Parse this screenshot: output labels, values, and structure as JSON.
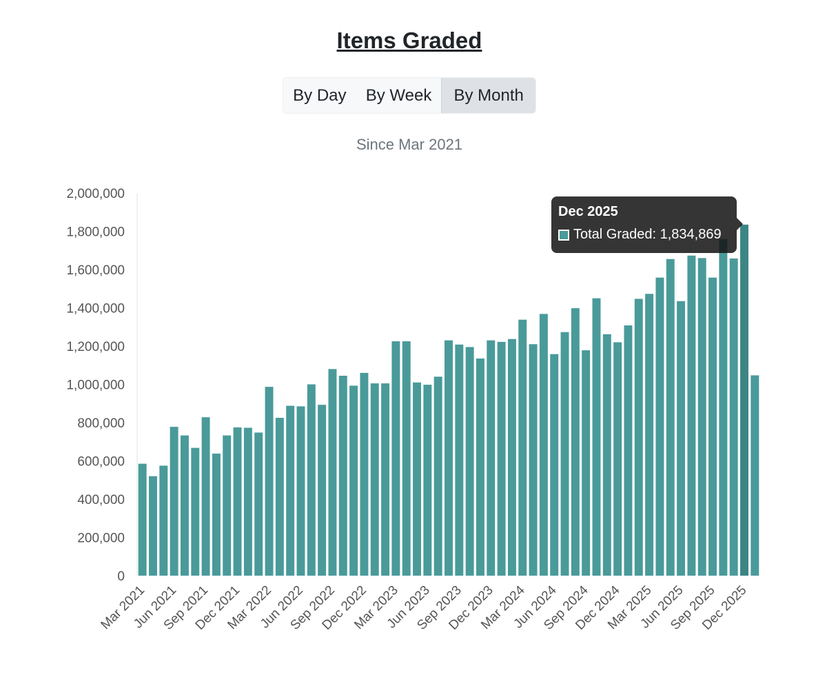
{
  "page": {
    "title": "Items Graded",
    "subtitle": "Since Mar 2021",
    "toggle": {
      "day": "By Day",
      "week": "By Week",
      "month": "By Month",
      "active": "month"
    }
  },
  "tooltip": {
    "title": "Dec 2025",
    "series": "Total Graded",
    "value": "1,834,869",
    "text": "Total Graded: 1,834,869"
  },
  "colors": {
    "bar": "#4a9a9a",
    "bar_highlight": "#3d8585",
    "axis_text": "#555555"
  },
  "chart_data": {
    "type": "bar",
    "title": "Items Graded",
    "subtitle": "Since Mar 2021",
    "xlabel": "",
    "ylabel": "",
    "ylim": [
      0,
      2000000
    ],
    "yticks": [
      0,
      200000,
      400000,
      600000,
      800000,
      1000000,
      1200000,
      1400000,
      1600000,
      1800000,
      2000000
    ],
    "ytick_labels": [
      "0",
      "200,000",
      "400,000",
      "600,000",
      "800,000",
      "1,000,000",
      "1,200,000",
      "1,400,000",
      "1,600,000",
      "1,800,000",
      "2,000,000"
    ],
    "grid": false,
    "categories": [
      "Mar 2021",
      "Apr 2021",
      "May 2021",
      "Jun 2021",
      "Jul 2021",
      "Aug 2021",
      "Sep 2021",
      "Oct 2021",
      "Nov 2021",
      "Dec 2021",
      "Jan 2022",
      "Feb 2022",
      "Mar 2022",
      "Apr 2022",
      "May 2022",
      "Jun 2022",
      "Jul 2022",
      "Aug 2022",
      "Sep 2022",
      "Oct 2022",
      "Nov 2022",
      "Dec 2022",
      "Jan 2023",
      "Feb 2023",
      "Mar 2023",
      "Apr 2023",
      "May 2023",
      "Jun 2023",
      "Jul 2023",
      "Aug 2023",
      "Sep 2023",
      "Oct 2023",
      "Nov 2023",
      "Dec 2023",
      "Jan 2024",
      "Feb 2024",
      "Mar 2024",
      "Apr 2024",
      "May 2024",
      "Jun 2024",
      "Jul 2024",
      "Aug 2024",
      "Sep 2024",
      "Oct 2024",
      "Nov 2024",
      "Dec 2024",
      "Jan 2025",
      "Feb 2025",
      "Mar 2025",
      "Apr 2025",
      "May 2025",
      "Jun 2025",
      "Jul 2025",
      "Aug 2025",
      "Sep 2025",
      "Oct 2025",
      "Nov 2025",
      "Dec 2025",
      "Jan 2026"
    ],
    "tick_labels": [
      "Mar 2021",
      "Jun 2021",
      "Sep 2021",
      "Dec 2021",
      "Mar 2022",
      "Jun 2022",
      "Sep 2022",
      "Dec 2022",
      "Mar 2023",
      "Jun 2023",
      "Sep 2023",
      "Dec 2023",
      "Mar 2024",
      "Jun 2024",
      "Sep 2024",
      "Dec 2024",
      "Mar 2025",
      "Jun 2025",
      "Sep 2025",
      "Dec 2025"
    ],
    "series": [
      {
        "name": "Total Graded",
        "values": [
          585000,
          520000,
          575000,
          778000,
          733000,
          668000,
          828000,
          638000,
          733000,
          775000,
          773000,
          748000,
          987000,
          825000,
          888000,
          885000,
          1000000,
          893000,
          1080000,
          1045000,
          993000,
          1060000,
          1005000,
          1005000,
          1225000,
          1225000,
          1010000,
          998000,
          1040000,
          1230000,
          1208000,
          1195000,
          1135000,
          1230000,
          1222000,
          1237000,
          1338000,
          1210000,
          1368000,
          1158000,
          1273000,
          1398000,
          1178000,
          1450000,
          1262000,
          1220000,
          1308000,
          1447000,
          1473000,
          1558000,
          1655000,
          1435000,
          1673000,
          1660000,
          1558000,
          1760000,
          1658000,
          1834869,
          1047000
        ]
      }
    ],
    "highlight": {
      "category": "Dec 2025",
      "value": 1834869
    }
  }
}
